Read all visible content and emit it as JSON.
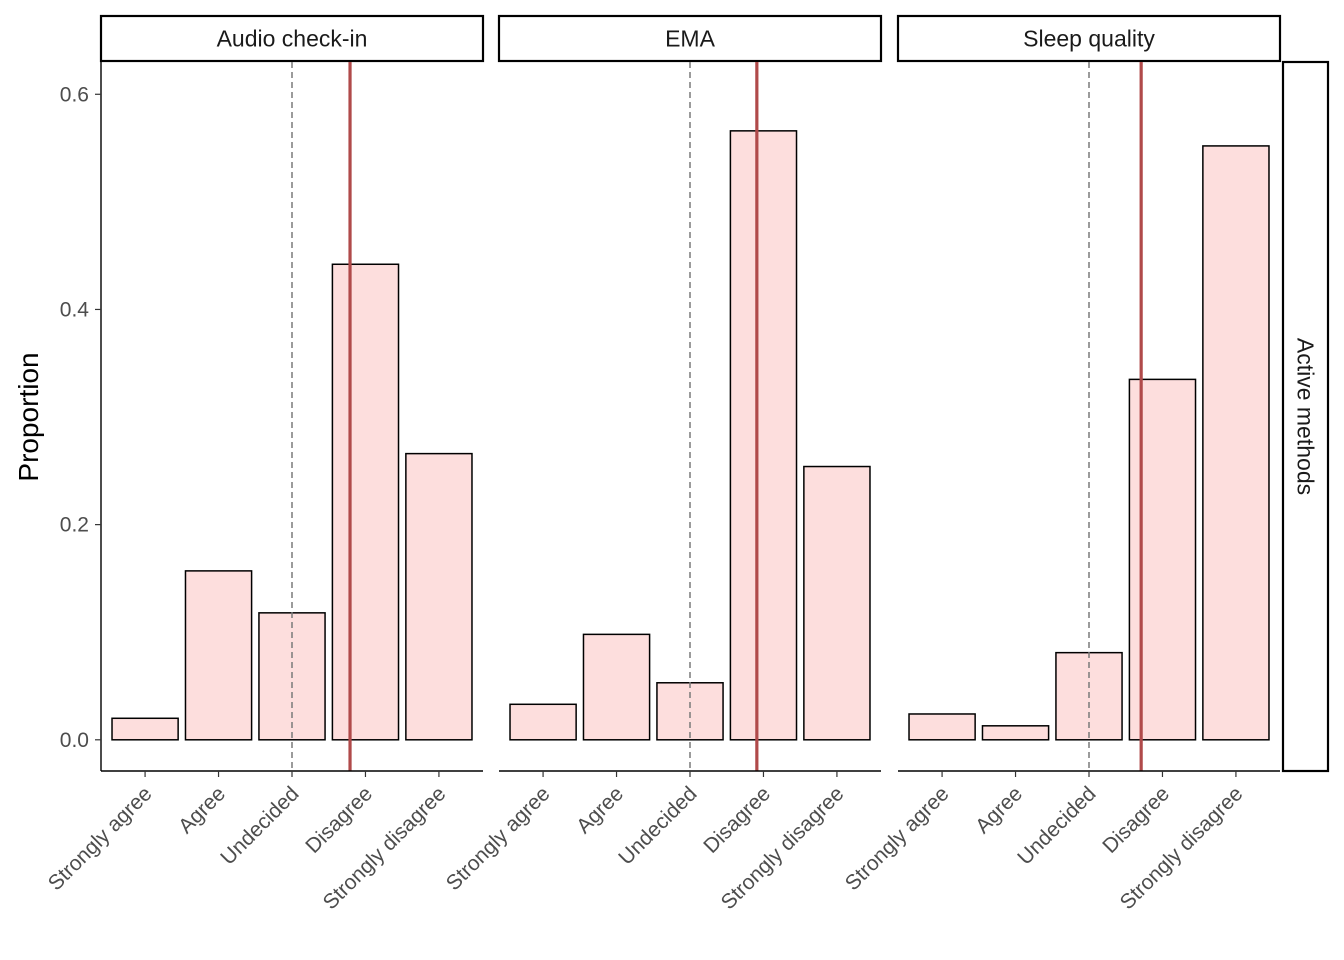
{
  "chart_data": {
    "type": "bar",
    "facet_row_label": "Active methods",
    "ylabel": "Proportion",
    "xlabel": "",
    "ylim": [
      -0.029,
      0.63
    ],
    "yticks": [
      0.0,
      0.2,
      0.4,
      0.6
    ],
    "ytick_labels": [
      "0.0",
      "0.2",
      "0.4",
      "0.6"
    ],
    "categories": [
      "Strongly agree",
      "Agree",
      "Undecided",
      "Disagree",
      "Strongly disagree"
    ],
    "grid": false,
    "colors": {
      "bar_fill": "#fddedd",
      "bar_stroke": "#000000",
      "reference_line": "#b04a4a",
      "dashed_line": "#7a7a7a"
    },
    "reference_dashed_category": "Undecided",
    "panels": [
      {
        "title": "Audio check-in",
        "values": [
          0.02,
          0.157,
          0.118,
          0.442,
          0.266
        ],
        "reference_line_x": 3.79
      },
      {
        "title": "EMA",
        "values": [
          0.033,
          0.098,
          0.053,
          0.566,
          0.254
        ],
        "reference_line_x": 3.91
      },
      {
        "title": "Sleep quality",
        "values": [
          0.024,
          0.013,
          0.081,
          0.335,
          0.552
        ],
        "reference_line_x": 3.71
      }
    ]
  }
}
